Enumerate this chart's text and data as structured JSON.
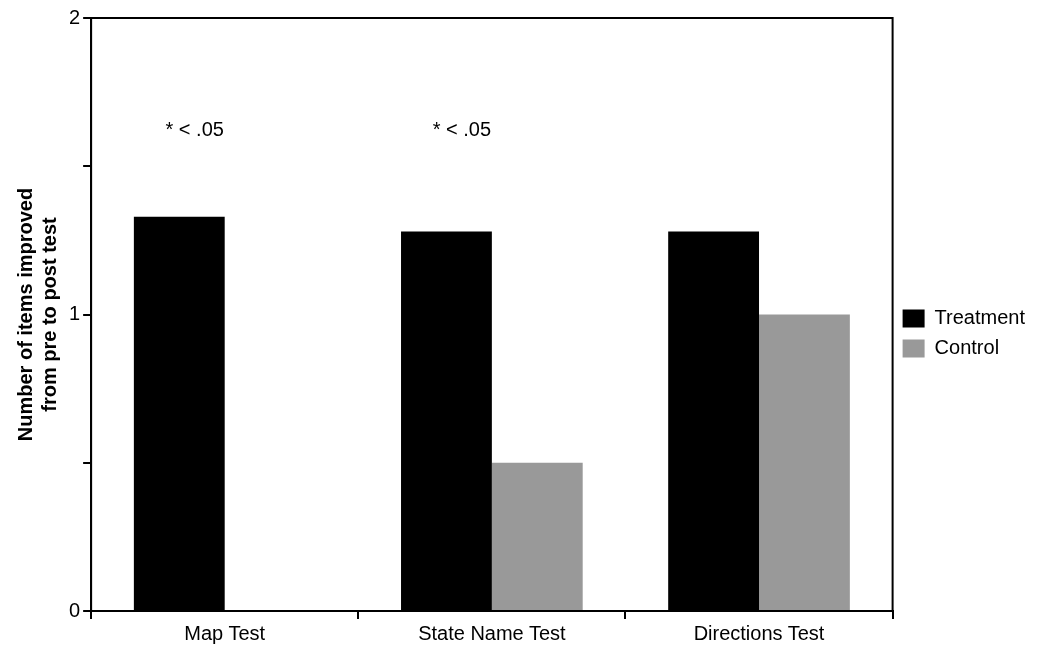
{
  "chart_data": {
    "type": "bar",
    "ylabel": "Number of items improved\nfrom pre to post test",
    "categories": [
      "Map Test",
      "State Name Test",
      "Directions Test"
    ],
    "series": [
      {
        "name": "Treatment",
        "color": "#000000",
        "values": [
          1.33,
          1.28,
          1.28
        ]
      },
      {
        "name": "Control",
        "color": "#999999",
        "values": [
          0,
          0.5,
          1.0
        ]
      }
    ],
    "ylim": [
      0,
      2
    ],
    "yticks": [
      0,
      {
        "value": 0.5,
        "label": null
      },
      1,
      {
        "value": 1.5,
        "label": null
      },
      2
    ],
    "annotations": [
      "* < .05",
      "* < .05"
    ],
    "grid": false,
    "legend": "right"
  }
}
